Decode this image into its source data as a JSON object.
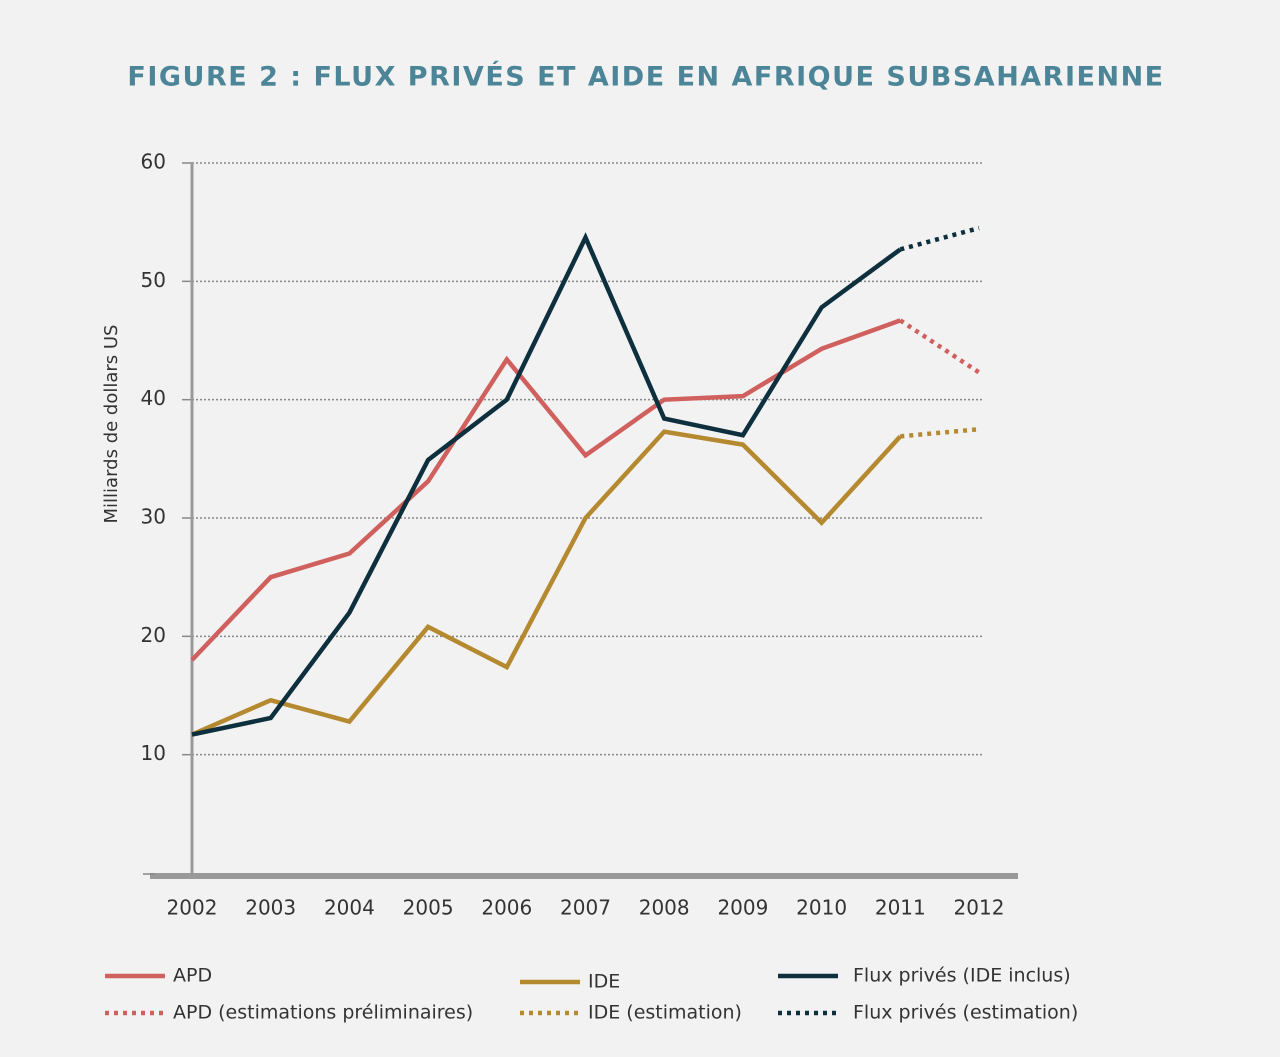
{
  "chart_data": {
    "type": "line",
    "title": "FIGURE 2 : FLUX PRIVÉS ET AIDE EN AFRIQUE SUBSAHARIENNE",
    "y_label": "Milliards de dollars US",
    "categories": [
      "2002",
      "2003",
      "2004",
      "2005",
      "2006",
      "2007",
      "2008",
      "2009",
      "2010",
      "2011",
      "2012"
    ],
    "series": [
      {
        "name": "APD",
        "color": "#d0605e",
        "style": "solid",
        "values": [
          18,
          25,
          27,
          33.1,
          43.4,
          35.3,
          40,
          40.3,
          44.3,
          46.7,
          null
        ]
      },
      {
        "name": "APD (estimations préliminaires)",
        "color": "#d0605e",
        "style": "dotted",
        "values": [
          null,
          null,
          null,
          null,
          null,
          null,
          null,
          null,
          null,
          46.7,
          42.3
        ]
      },
      {
        "name": "IDE",
        "color": "#b5892f",
        "style": "solid",
        "values": [
          11.7,
          14.6,
          12.8,
          20.8,
          17.4,
          30,
          37.3,
          36.2,
          29.6,
          36.9,
          null
        ]
      },
      {
        "name": "IDE (estimation)",
        "color": "#b5892f",
        "style": "dotted",
        "values": [
          null,
          null,
          null,
          null,
          null,
          null,
          null,
          null,
          null,
          36.9,
          37.5
        ]
      },
      {
        "name": "Flux privés (IDE inclus)",
        "color": "#0e2f3d",
        "style": "solid",
        "values": [
          11.7,
          13.1,
          22,
          34.9,
          40,
          53.7,
          38.4,
          37,
          47.8,
          52.7,
          null
        ]
      },
      {
        "name": "Flux privés (estimation)",
        "color": "#0e2f3d",
        "style": "dotted",
        "values": [
          null,
          null,
          null,
          null,
          null,
          null,
          null,
          null,
          null,
          52.7,
          54.5
        ]
      }
    ],
    "ylim": [
      0,
      60
    ],
    "yticks": [
      10,
      20,
      30,
      40,
      50,
      60
    ],
    "grid": true
  }
}
